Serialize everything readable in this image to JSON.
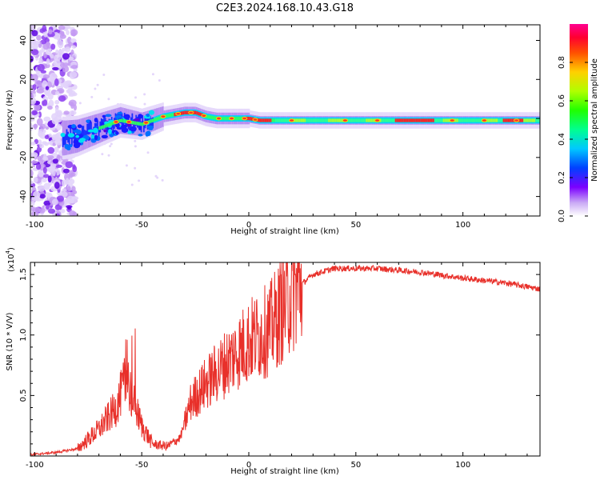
{
  "title": "C2E3.2024.168.10.43.G18",
  "chart_data": [
    {
      "type": "heatmap",
      "xlabel": "Height of straight line (km)",
      "ylabel": "Frequency (Hz)",
      "xlim": [
        -102,
        136
      ],
      "ylim": [
        -50,
        48
      ],
      "xticks": [
        -100,
        -50,
        0,
        50,
        100
      ],
      "yticks": [
        -40,
        -20,
        0,
        20,
        40
      ],
      "xtick_labels": [
        "-100",
        "-50",
        "0",
        "50",
        "100"
      ],
      "ytick_labels": [
        "-40",
        "-20",
        "0",
        "20",
        "40"
      ],
      "ridge": [
        {
          "x": -86,
          "f": -10
        },
        {
          "x": -80,
          "f": -9
        },
        {
          "x": -75,
          "f": -7
        },
        {
          "x": -70,
          "f": -5
        },
        {
          "x": -65,
          "f": -3
        },
        {
          "x": -60,
          "f": -1
        },
        {
          "x": -55,
          "f": -2
        },
        {
          "x": -50,
          "f": -3
        },
        {
          "x": -45,
          "f": -1
        },
        {
          "x": -40,
          "f": 1
        },
        {
          "x": -35,
          "f": 2
        },
        {
          "x": -30,
          "f": 3
        },
        {
          "x": -25,
          "f": 3
        },
        {
          "x": -20,
          "f": 1
        },
        {
          "x": -15,
          "f": 0
        },
        {
          "x": -10,
          "f": 0
        },
        {
          "x": -5,
          "f": 0
        },
        {
          "x": 0,
          "f": 0
        },
        {
          "x": 5,
          "f": -1
        },
        {
          "x": 10,
          "f": -1
        },
        {
          "x": 20,
          "f": -1
        },
        {
          "x": 40,
          "f": -1
        },
        {
          "x": 60,
          "f": -1
        },
        {
          "x": 80,
          "f": -1
        },
        {
          "x": 100,
          "f": -1
        },
        {
          "x": 120,
          "f": -1
        },
        {
          "x": 135,
          "f": -1
        }
      ],
      "colorbar": {
        "label": "Normalized spectral amplitude",
        "range": [
          0,
          1
        ],
        "ticks": [
          0.0,
          0.2,
          0.4,
          0.6,
          0.8
        ],
        "tick_labels": [
          "0.0",
          "0.2",
          "0.4",
          "0.6",
          "0.8"
        ]
      }
    },
    {
      "type": "line",
      "xlabel": "Height of straight line (km)",
      "ylabel": "SNR (10 * V/V)",
      "ylabel_multiplier": "(x10",
      "ylabel_exponent": "4",
      "multiplier_close": ")",
      "xlim": [
        -102,
        136
      ],
      "ylim": [
        0,
        1.6
      ],
      "xticks": [
        -100,
        -50,
        0,
        50,
        100
      ],
      "yticks": [
        0.5,
        1.0,
        1.5
      ],
      "xtick_labels": [
        "-100",
        "-50",
        "0",
        "50",
        "100"
      ],
      "ytick_labels": [
        "0.5",
        "1.0",
        "1.5"
      ],
      "line_color": "#e8302a",
      "envelope": [
        {
          "x": -102,
          "y": 0.01
        },
        {
          "x": -90,
          "y": 0.03
        },
        {
          "x": -80,
          "y": 0.06
        },
        {
          "x": -70,
          "y": 0.22
        },
        {
          "x": -62,
          "y": 0.4
        },
        {
          "x": -57,
          "y": 0.65
        },
        {
          "x": -54,
          "y": 0.45
        },
        {
          "x": -50,
          "y": 0.25
        },
        {
          "x": -45,
          "y": 0.1
        },
        {
          "x": -38,
          "y": 0.08
        },
        {
          "x": -32,
          "y": 0.15
        },
        {
          "x": -27,
          "y": 0.45
        },
        {
          "x": -20,
          "y": 0.6
        },
        {
          "x": -10,
          "y": 0.78
        },
        {
          "x": 0,
          "y": 0.95
        },
        {
          "x": 10,
          "y": 1.05
        },
        {
          "x": 20,
          "y": 1.35
        },
        {
          "x": 30,
          "y": 1.5
        },
        {
          "x": 40,
          "y": 1.55
        },
        {
          "x": 60,
          "y": 1.55
        },
        {
          "x": 80,
          "y": 1.52
        },
        {
          "x": 100,
          "y": 1.47
        },
        {
          "x": 120,
          "y": 1.43
        },
        {
          "x": 136,
          "y": 1.38
        }
      ]
    }
  ]
}
